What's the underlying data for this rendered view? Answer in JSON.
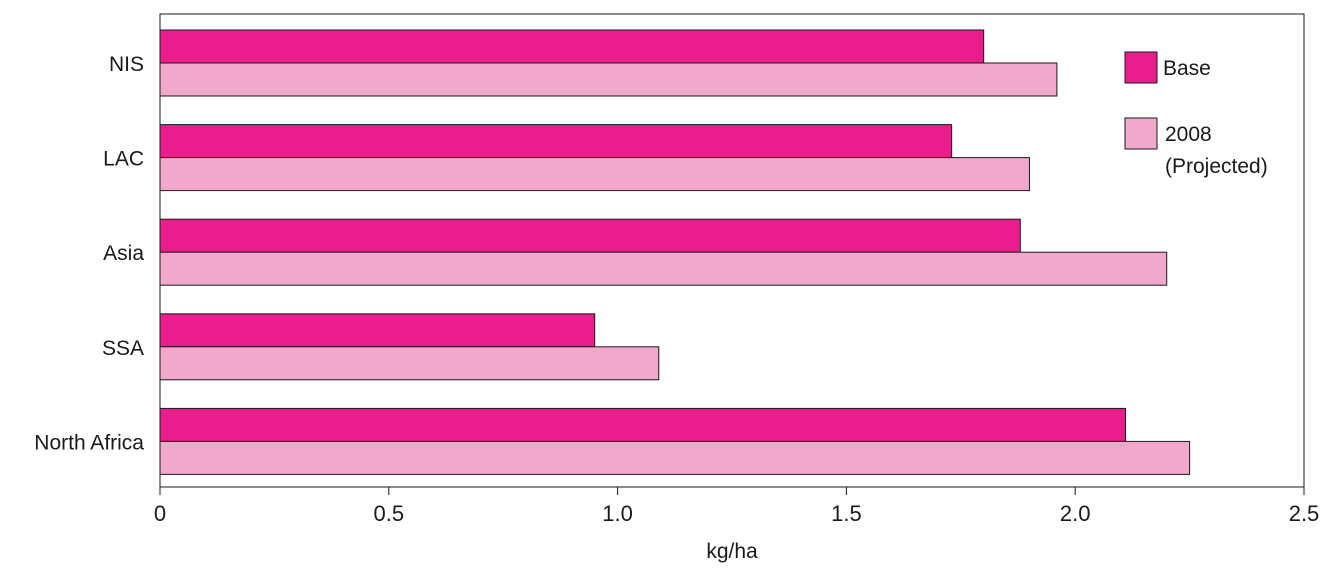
{
  "chart_data": {
    "type": "bar",
    "orientation": "horizontal",
    "categories": [
      "NIS",
      "LAC",
      "Asia",
      "SSA",
      "North Africa"
    ],
    "series": [
      {
        "name": "Base",
        "values": [
          1.8,
          1.73,
          1.88,
          0.95,
          2.11
        ]
      },
      {
        "name": "2008 (Projected)",
        "values": [
          1.96,
          1.9,
          2.2,
          1.09,
          2.25
        ]
      }
    ],
    "xlabel": "kg/ha",
    "ylabel": "",
    "title": "",
    "xlim": [
      0,
      2.5
    ],
    "xticks": [
      "0",
      "0.5",
      "1.0",
      "1.5",
      "2.0",
      "2.5"
    ],
    "grid": false,
    "legend_position": "top-right inside",
    "legend": {
      "base_label": "Base",
      "projected_label_line1": "2008",
      "projected_label_line2": "(Projected)"
    },
    "colors": {
      "base": "#e91e8c",
      "projected": "#f0a8cb",
      "outline": "#1a1a1a"
    }
  }
}
